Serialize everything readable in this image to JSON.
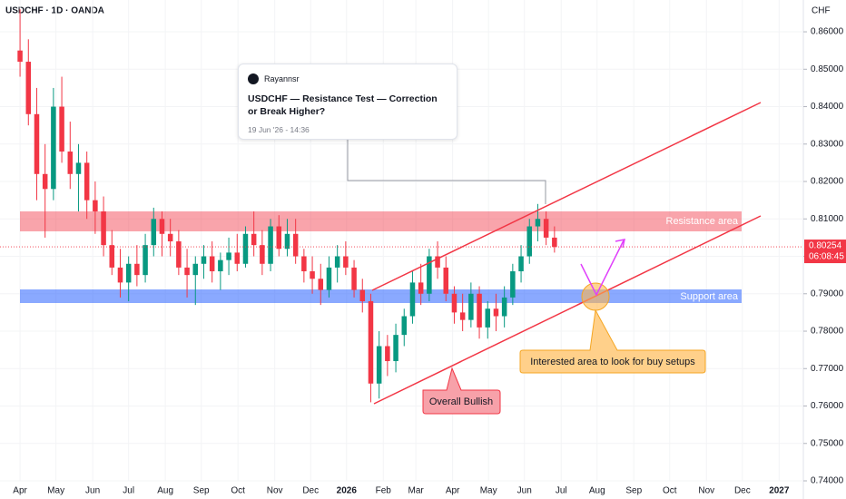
{
  "chart_data": {
    "type": "candlestick",
    "title": "USDCHF · 1D · OANDA",
    "currency": "CHF",
    "up_color": "#089981",
    "down_color": "#f23645",
    "open": [
      0.855,
      0.852,
      0.838,
      0.822,
      0.818,
      0.84,
      0.828,
      0.822,
      0.825,
      0.815,
      0.812,
      0.803,
      0.797,
      0.793,
      0.798,
      0.795,
      0.803,
      0.81,
      0.806,
      0.804,
      0.797,
      0.795,
      0.798,
      0.8,
      0.796,
      0.799,
      0.801,
      0.798,
      0.806,
      0.803,
      0.798,
      0.808,
      0.802,
      0.806,
      0.8,
      0.796,
      0.794,
      0.791,
      0.797,
      0.8,
      0.797,
      0.791,
      0.788,
      0.766,
      0.776,
      0.772,
      0.779,
      0.784,
      0.793,
      0.79,
      0.8,
      0.797,
      0.79,
      0.785,
      0.783,
      0.79,
      0.781,
      0.786,
      0.784,
      0.789,
      0.796,
      0.8,
      0.808,
      0.81,
      0.805
    ],
    "high": [
      0.866,
      0.858,
      0.845,
      0.83,
      0.845,
      0.848,
      0.836,
      0.83,
      0.828,
      0.82,
      0.816,
      0.807,
      0.802,
      0.8,
      0.803,
      0.806,
      0.813,
      0.812,
      0.81,
      0.807,
      0.802,
      0.8,
      0.803,
      0.804,
      0.801,
      0.805,
      0.806,
      0.808,
      0.812,
      0.807,
      0.81,
      0.811,
      0.81,
      0.81,
      0.802,
      0.8,
      0.798,
      0.8,
      0.803,
      0.804,
      0.799,
      0.794,
      0.79,
      0.78,
      0.779,
      0.782,
      0.786,
      0.796,
      0.798,
      0.802,
      0.804,
      0.8,
      0.792,
      0.79,
      0.793,
      0.792,
      0.788,
      0.79,
      0.792,
      0.798,
      0.803,
      0.81,
      0.814,
      0.812,
      0.808
    ],
    "low": [
      0.848,
      0.835,
      0.815,
      0.805,
      0.815,
      0.825,
      0.818,
      0.812,
      0.81,
      0.806,
      0.8,
      0.795,
      0.789,
      0.788,
      0.792,
      0.793,
      0.8,
      0.8,
      0.8,
      0.795,
      0.789,
      0.787,
      0.794,
      0.793,
      0.791,
      0.795,
      0.796,
      0.797,
      0.8,
      0.795,
      0.796,
      0.8,
      0.8,
      0.798,
      0.793,
      0.79,
      0.787,
      0.789,
      0.793,
      0.795,
      0.789,
      0.785,
      0.761,
      0.762,
      0.768,
      0.769,
      0.776,
      0.782,
      0.787,
      0.788,
      0.794,
      0.788,
      0.782,
      0.78,
      0.781,
      0.778,
      0.778,
      0.78,
      0.781,
      0.787,
      0.793,
      0.798,
      0.804,
      0.803,
      0.801
    ],
    "close": [
      0.852,
      0.838,
      0.822,
      0.818,
      0.84,
      0.828,
      0.822,
      0.825,
      0.815,
      0.812,
      0.803,
      0.797,
      0.793,
      0.798,
      0.795,
      0.803,
      0.81,
      0.806,
      0.804,
      0.797,
      0.795,
      0.798,
      0.8,
      0.796,
      0.799,
      0.801,
      0.798,
      0.806,
      0.803,
      0.798,
      0.808,
      0.802,
      0.806,
      0.8,
      0.796,
      0.794,
      0.791,
      0.797,
      0.8,
      0.797,
      0.791,
      0.788,
      0.766,
      0.776,
      0.772,
      0.779,
      0.784,
      0.793,
      0.79,
      0.8,
      0.797,
      0.79,
      0.785,
      0.783,
      0.79,
      0.781,
      0.786,
      0.784,
      0.789,
      0.796,
      0.8,
      0.808,
      0.81,
      0.805,
      0.8025
    ],
    "xlim": [
      -2.4,
      93.8
    ],
    "xticks": [
      {
        "value": 0,
        "label": "Apr"
      },
      {
        "value": 4.3,
        "label": "May"
      },
      {
        "value": 8.7,
        "label": "Jun"
      },
      {
        "value": 13,
        "label": "Jul"
      },
      {
        "value": 17.4,
        "label": "Aug"
      },
      {
        "value": 21.7,
        "label": "Sep"
      },
      {
        "value": 26.1,
        "label": "Oct"
      },
      {
        "value": 30.5,
        "label": "Nov"
      },
      {
        "value": 34.8,
        "label": "Dec"
      },
      {
        "value": 39.1,
        "label": "2026"
      },
      {
        "value": 43.5,
        "label": "Feb"
      },
      {
        "value": 47.4,
        "label": "Mar"
      },
      {
        "value": 51.8,
        "label": "Apr"
      },
      {
        "value": 56.1,
        "label": "May"
      },
      {
        "value": 60.4,
        "label": "Jun"
      },
      {
        "value": 64.8,
        "label": "Jul"
      },
      {
        "value": 69.1,
        "label": "Aug"
      },
      {
        "value": 73.5,
        "label": "Sep"
      },
      {
        "value": 77.8,
        "label": "Oct"
      },
      {
        "value": 82.2,
        "label": "Nov"
      },
      {
        "value": 86.5,
        "label": "Dec"
      },
      {
        "value": 90.9,
        "label": "2027"
      }
    ],
    "ylim": [
      0.74,
      0.8685
    ],
    "yticks": [
      {
        "value": 0.86,
        "label": "0.86000"
      },
      {
        "value": 0.85,
        "label": "0.85000"
      },
      {
        "value": 0.84,
        "label": "0.84000"
      },
      {
        "value": 0.83,
        "label": "0.83000"
      },
      {
        "value": 0.82,
        "label": "0.82000"
      },
      {
        "value": 0.81,
        "label": "0.81000"
      },
      {
        "value": 0.8,
        "label": "0.80000"
      },
      {
        "value": 0.79,
        "label": "0.79000"
      },
      {
        "value": 0.78,
        "label": "0.78000"
      },
      {
        "value": 0.77,
        "label": "0.77000"
      },
      {
        "value": 0.76,
        "label": "0.76000"
      },
      {
        "value": 0.75,
        "label": "0.75000"
      },
      {
        "value": 0.74,
        "label": "0.74000"
      }
    ],
    "grid": true,
    "last_price": 0.80254,
    "countdown": "06:08:45",
    "annotations": {
      "resistance": "Resistance area",
      "support": "Support area",
      "bullish": "Overall Bullish",
      "buy": "Interested area to look for buy setups"
    }
  },
  "post": {
    "author": "Rayannsr",
    "title": "USDCHF — Resistance Test — Correction or Break Higher?",
    "date": "19 Jun '26 - 14:36"
  }
}
